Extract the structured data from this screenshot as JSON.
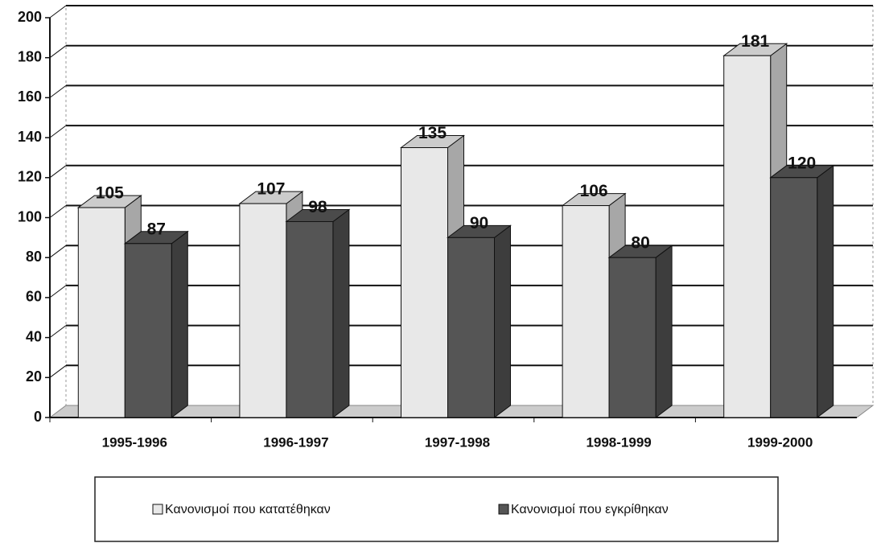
{
  "chart_data": {
    "type": "bar3d",
    "categories": [
      "1995-1996",
      "1996-1997",
      "1997-1998",
      "1998-1999",
      "1999-2000"
    ],
    "series": [
      {
        "name": "Κανονισμοί που κατατέθηκαν",
        "color": "#e8e8e8",
        "values": [
          105,
          107,
          135,
          106,
          181
        ]
      },
      {
        "name": "Κανονισμοί που εγκρίθηκαν",
        "color": "#555555",
        "values": [
          87,
          98,
          90,
          80,
          120
        ]
      }
    ],
    "ylim": [
      0,
      200
    ],
    "yticks": [
      0,
      20,
      40,
      60,
      80,
      100,
      120,
      140,
      160,
      180,
      200
    ],
    "grid": true,
    "legend": "bottom"
  }
}
